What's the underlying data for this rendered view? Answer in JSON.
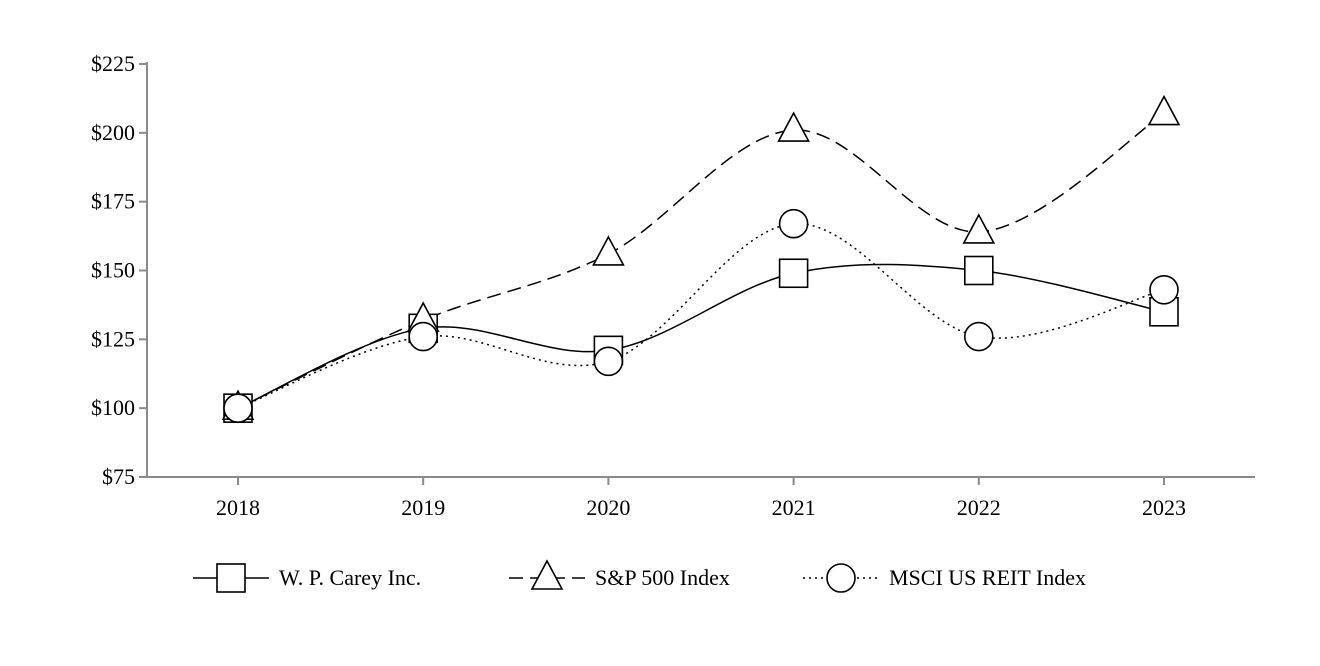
{
  "chart_data": {
    "type": "line",
    "title": "",
    "xlabel": "",
    "ylabel": "",
    "categories": [
      "2018",
      "2019",
      "2020",
      "2021",
      "2022",
      "2023"
    ],
    "ylim": [
      75,
      225
    ],
    "yticks": [
      75,
      100,
      125,
      150,
      175,
      200,
      225
    ],
    "ytick_labels": [
      "$75",
      "$100",
      "$125",
      "$150",
      "$175",
      "$200",
      "$225"
    ],
    "grid": false,
    "legend_position": "bottom",
    "series": [
      {
        "name": "W. P. Carey Inc.",
        "values": [
          100,
          129,
          121,
          149,
          150,
          135
        ],
        "marker": "square",
        "line_style": "solid"
      },
      {
        "name": "S&P 500 Index",
        "values": [
          100,
          132,
          156,
          201,
          164,
          207
        ],
        "marker": "triangle",
        "line_style": "dashed"
      },
      {
        "name": "MSCI US REIT Index",
        "values": [
          100,
          126,
          117,
          167,
          126,
          143
        ],
        "marker": "circle",
        "line_style": "dotted"
      }
    ]
  }
}
